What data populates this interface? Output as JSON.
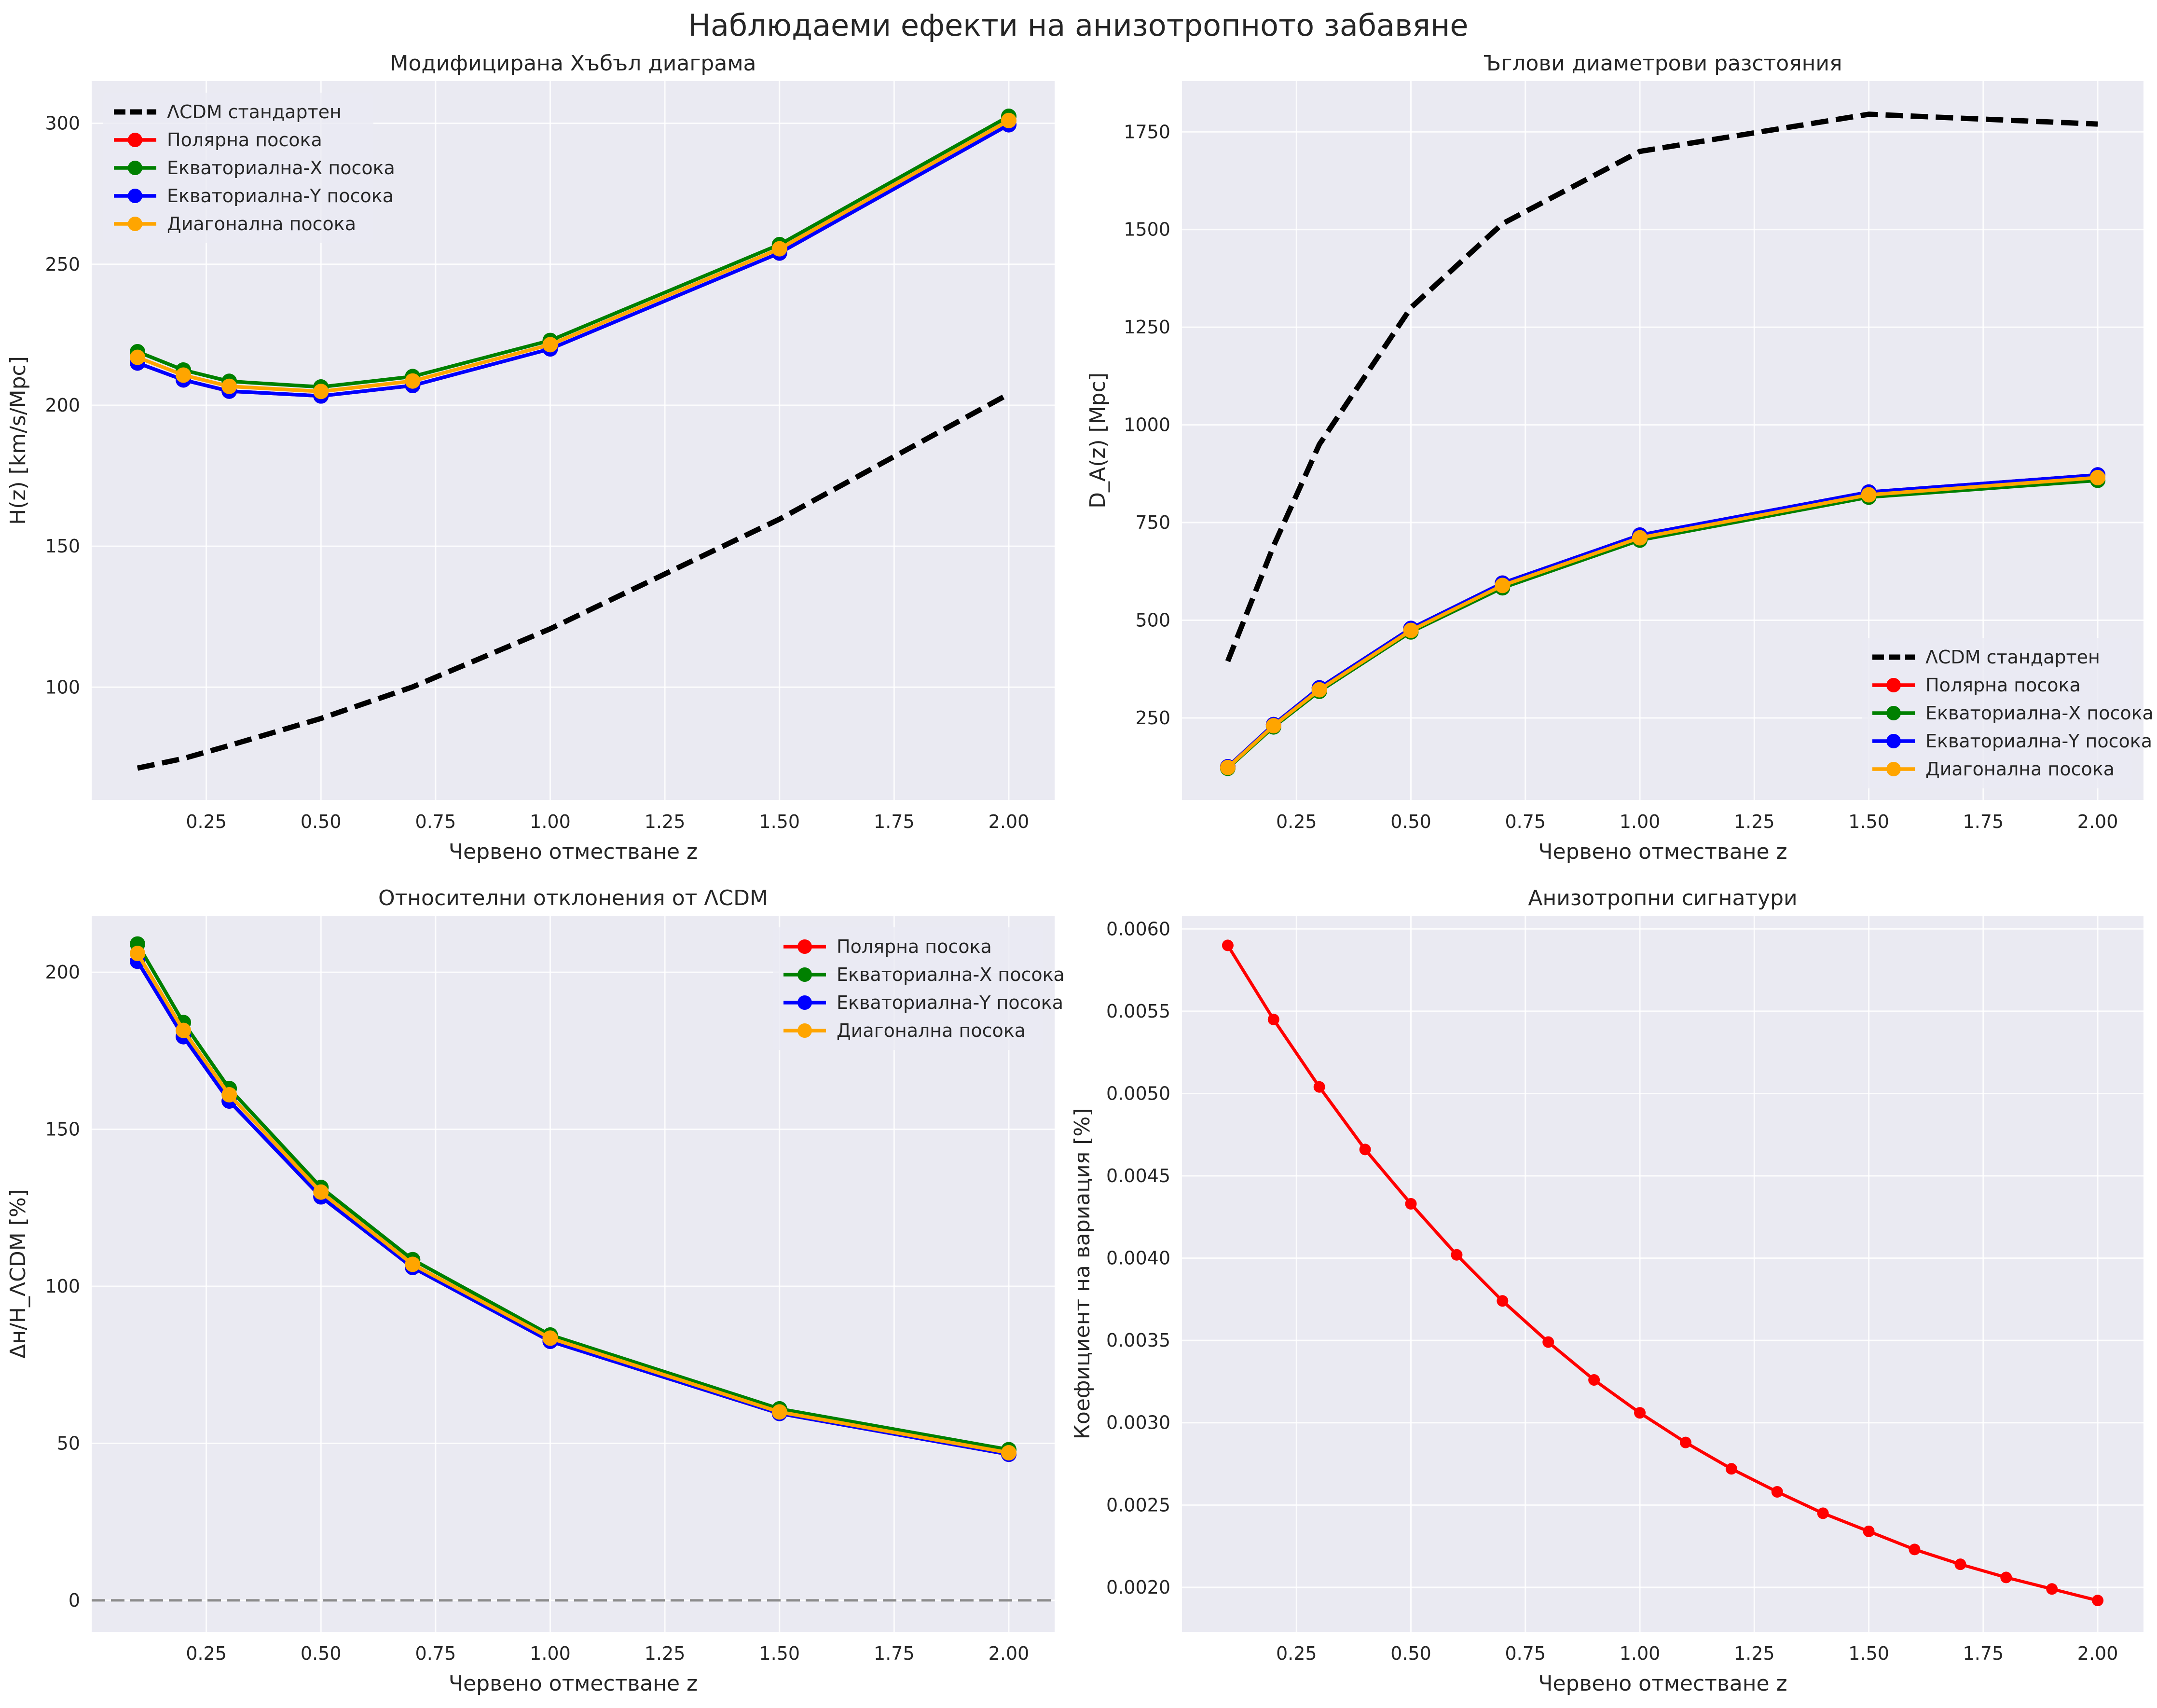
{
  "figure": {
    "title": "Наблюдаеми ефекти на анизотропното забавяне"
  },
  "chart_data": [
    {
      "type": "line",
      "title": "Модифицирана Хъбъл диаграма",
      "xlabel": "Червено отместване z",
      "ylabel": "H(z) [km/s/Mpc]",
      "xlim": [
        0.0,
        2.1
      ],
      "ylim": [
        60,
        315
      ],
      "xticks": [
        0.25,
        0.5,
        0.75,
        1.0,
        1.25,
        1.5,
        1.75,
        2.0
      ],
      "xtick_labels": [
        "0.25",
        "0.50",
        "0.75",
        "1.00",
        "1.25",
        "1.50",
        "1.75",
        "2.00"
      ],
      "yticks": [
        100,
        150,
        200,
        250,
        300
      ],
      "ytick_labels": [
        "100",
        "150",
        "200",
        "250",
        "300"
      ],
      "grid": true,
      "legend_position": "upper-left",
      "series": [
        {
          "name": "ΛCDM стандартен",
          "color": "#000000",
          "dashed": true,
          "markers": false,
          "x": [
            0.1,
            0.2,
            0.3,
            0.5,
            0.7,
            1.0,
            1.5,
            2.0
          ],
          "y": [
            71.3,
            74.7,
            79.3,
            88.9,
            100.1,
            120.7,
            159.6,
            204.0
          ]
        },
        {
          "name": "Полярна посока",
          "color": "#ff0000",
          "dashed": false,
          "markers": true,
          "x": [
            0.1,
            0.2,
            0.3,
            0.5,
            0.7,
            1.0,
            1.5,
            2.0
          ],
          "y": [
            215.0,
            209.0,
            205.0,
            203.3,
            207.0,
            220.0,
            254.0,
            299.5
          ]
        },
        {
          "name": "Екваториална-X посока",
          "color": "#008000",
          "dashed": false,
          "markers": true,
          "x": [
            0.1,
            0.2,
            0.3,
            0.5,
            0.7,
            1.0,
            1.5,
            2.0
          ],
          "y": [
            219.0,
            212.5,
            208.5,
            206.5,
            210.2,
            223.0,
            257.0,
            302.5
          ]
        },
        {
          "name": "Екваториална-Y посока",
          "color": "#0000ff",
          "dashed": false,
          "markers": true,
          "x": [
            0.1,
            0.2,
            0.3,
            0.5,
            0.7,
            1.0,
            1.5,
            2.0
          ],
          "y": [
            215.0,
            209.0,
            205.0,
            203.3,
            207.0,
            220.0,
            254.0,
            299.5
          ]
        },
        {
          "name": "Диагонална посока",
          "color": "#ffa500",
          "dashed": false,
          "markers": true,
          "x": [
            0.1,
            0.2,
            0.3,
            0.5,
            0.7,
            1.0,
            1.5,
            2.0
          ],
          "y": [
            217.0,
            210.7,
            206.7,
            204.9,
            208.6,
            221.5,
            255.5,
            301.0
          ]
        }
      ]
    },
    {
      "type": "line",
      "title": "Ъглови диаметрови разстояния",
      "xlabel": "Червено отместване z",
      "ylabel": "D_A(z) [Mpc]",
      "xlim": [
        0.0,
        2.1
      ],
      "ylim": [
        40,
        1880
      ],
      "xticks": [
        0.25,
        0.5,
        0.75,
        1.0,
        1.25,
        1.5,
        1.75,
        2.0
      ],
      "xtick_labels": [
        "0.25",
        "0.50",
        "0.75",
        "1.00",
        "1.25",
        "1.50",
        "1.75",
        "2.00"
      ],
      "yticks": [
        250,
        500,
        750,
        1000,
        1250,
        1500,
        1750
      ],
      "ytick_labels": [
        "250",
        "500",
        "750",
        "1000",
        "1250",
        "1500",
        "1750"
      ],
      "grid": true,
      "legend_position": "lower-right",
      "series": [
        {
          "name": "ΛCDM стандартен",
          "color": "#000000",
          "dashed": true,
          "markers": false,
          "x": [
            0.1,
            0.2,
            0.3,
            0.5,
            0.7,
            1.0,
            1.5,
            2.0
          ],
          "y": [
            395,
            690,
            950,
            1300,
            1515,
            1700,
            1795,
            1770
          ]
        },
        {
          "name": "Полярна посока",
          "color": "#ff0000",
          "dashed": false,
          "markers": true,
          "x": [
            0.1,
            0.2,
            0.3,
            0.5,
            0.7,
            1.0,
            1.5,
            2.0
          ],
          "y": [
            125,
            233,
            327,
            479,
            595,
            718,
            828,
            872
          ]
        },
        {
          "name": "Екваториална-X посока",
          "color": "#008000",
          "dashed": false,
          "markers": true,
          "x": [
            0.1,
            0.2,
            0.3,
            0.5,
            0.7,
            1.0,
            1.5,
            2.0
          ],
          "y": [
            121,
            227,
            318,
            470,
            583,
            705,
            815,
            858
          ]
        },
        {
          "name": "Екваториална-Y посока",
          "color": "#0000ff",
          "dashed": false,
          "markers": true,
          "x": [
            0.1,
            0.2,
            0.3,
            0.5,
            0.7,
            1.0,
            1.5,
            2.0
          ],
          "y": [
            125,
            233,
            327,
            479,
            595,
            718,
            828,
            872
          ]
        },
        {
          "name": "Диагонална посока",
          "color": "#ffa500",
          "dashed": false,
          "markers": true,
          "x": [
            0.1,
            0.2,
            0.3,
            0.5,
            0.7,
            1.0,
            1.5,
            2.0
          ],
          "y": [
            123,
            230,
            322,
            474,
            589,
            711,
            821,
            865
          ]
        }
      ]
    },
    {
      "type": "line",
      "title": "Относителни отклонения от ΛCDM",
      "xlabel": "Червено отместване z",
      "ylabel": "Δн/H_ΛCDM [%]",
      "xlim": [
        0.0,
        2.1
      ],
      "ylim": [
        -10,
        218
      ],
      "xticks": [
        0.25,
        0.5,
        0.75,
        1.0,
        1.25,
        1.5,
        1.75,
        2.0
      ],
      "xtick_labels": [
        "0.25",
        "0.50",
        "0.75",
        "1.00",
        "1.25",
        "1.50",
        "1.75",
        "2.00"
      ],
      "yticks": [
        0,
        50,
        100,
        150,
        200
      ],
      "ytick_labels": [
        "0",
        "50",
        "100",
        "150",
        "200"
      ],
      "grid": true,
      "legend_position": "upper-right",
      "reference_line": {
        "y": 0,
        "color": "#808080",
        "dashed": true
      },
      "series": [
        {
          "name": "Полярна посока",
          "color": "#ff0000",
          "dashed": false,
          "markers": true,
          "x": [
            0.1,
            0.2,
            0.3,
            0.5,
            0.7,
            1.0,
            1.5,
            2.0
          ],
          "y": [
            203.5,
            179.5,
            159.0,
            128.5,
            106.0,
            82.5,
            59.5,
            46.5
          ]
        },
        {
          "name": "Екваториална-X посока",
          "color": "#008000",
          "dashed": false,
          "markers": true,
          "x": [
            0.1,
            0.2,
            0.3,
            0.5,
            0.7,
            1.0,
            1.5,
            2.0
          ],
          "y": [
            209.0,
            184.0,
            163.0,
            131.5,
            108.5,
            84.5,
            61.0,
            48.0
          ]
        },
        {
          "name": "Екваториална-Y посока",
          "color": "#0000ff",
          "dashed": false,
          "markers": true,
          "x": [
            0.1,
            0.2,
            0.3,
            0.5,
            0.7,
            1.0,
            1.5,
            2.0
          ],
          "y": [
            203.5,
            179.5,
            159.0,
            128.5,
            106.0,
            82.5,
            59.5,
            46.5
          ]
        },
        {
          "name": "Диагонална посока",
          "color": "#ffa500",
          "dashed": false,
          "markers": true,
          "x": [
            0.1,
            0.2,
            0.3,
            0.5,
            0.7,
            1.0,
            1.5,
            2.0
          ],
          "y": [
            206.0,
            181.5,
            161.0,
            130.0,
            107.0,
            83.5,
            60.0,
            47.0
          ]
        }
      ]
    },
    {
      "type": "line",
      "title": "Анизотропни сигнатури",
      "xlabel": "Червено отместване z",
      "ylabel": "Коефициент на вариация [%]",
      "xlim": [
        0.0,
        2.1
      ],
      "ylim": [
        0.00173,
        0.00608
      ],
      "xticks": [
        0.25,
        0.5,
        0.75,
        1.0,
        1.25,
        1.5,
        1.75,
        2.0
      ],
      "xtick_labels": [
        "0.25",
        "0.50",
        "0.75",
        "1.00",
        "1.25",
        "1.50",
        "1.75",
        "2.00"
      ],
      "yticks": [
        0.002,
        0.0025,
        0.003,
        0.0035,
        0.004,
        0.0045,
        0.005,
        0.0055,
        0.006
      ],
      "ytick_labels": [
        "0.0020",
        "0.0025",
        "0.0030",
        "0.0035",
        "0.0040",
        "0.0045",
        "0.0050",
        "0.0055",
        "0.0060"
      ],
      "grid": true,
      "series": [
        {
          "color": "#ff0000",
          "dashed": false,
          "markers": true,
          "x": [
            0.1,
            0.2,
            0.3,
            0.4,
            0.5,
            0.6,
            0.7,
            0.8,
            0.9,
            1.0,
            1.1,
            1.2,
            1.3,
            1.4,
            1.5,
            1.6,
            1.7,
            1.8,
            1.9,
            2.0
          ],
          "y": [
            0.0059,
            0.00545,
            0.00504,
            0.00466,
            0.00433,
            0.00402,
            0.00374,
            0.00349,
            0.00326,
            0.00306,
            0.00288,
            0.00272,
            0.00258,
            0.00245,
            0.00234,
            0.00223,
            0.00214,
            0.00206,
            0.00199,
            0.00192
          ]
        }
      ]
    }
  ]
}
